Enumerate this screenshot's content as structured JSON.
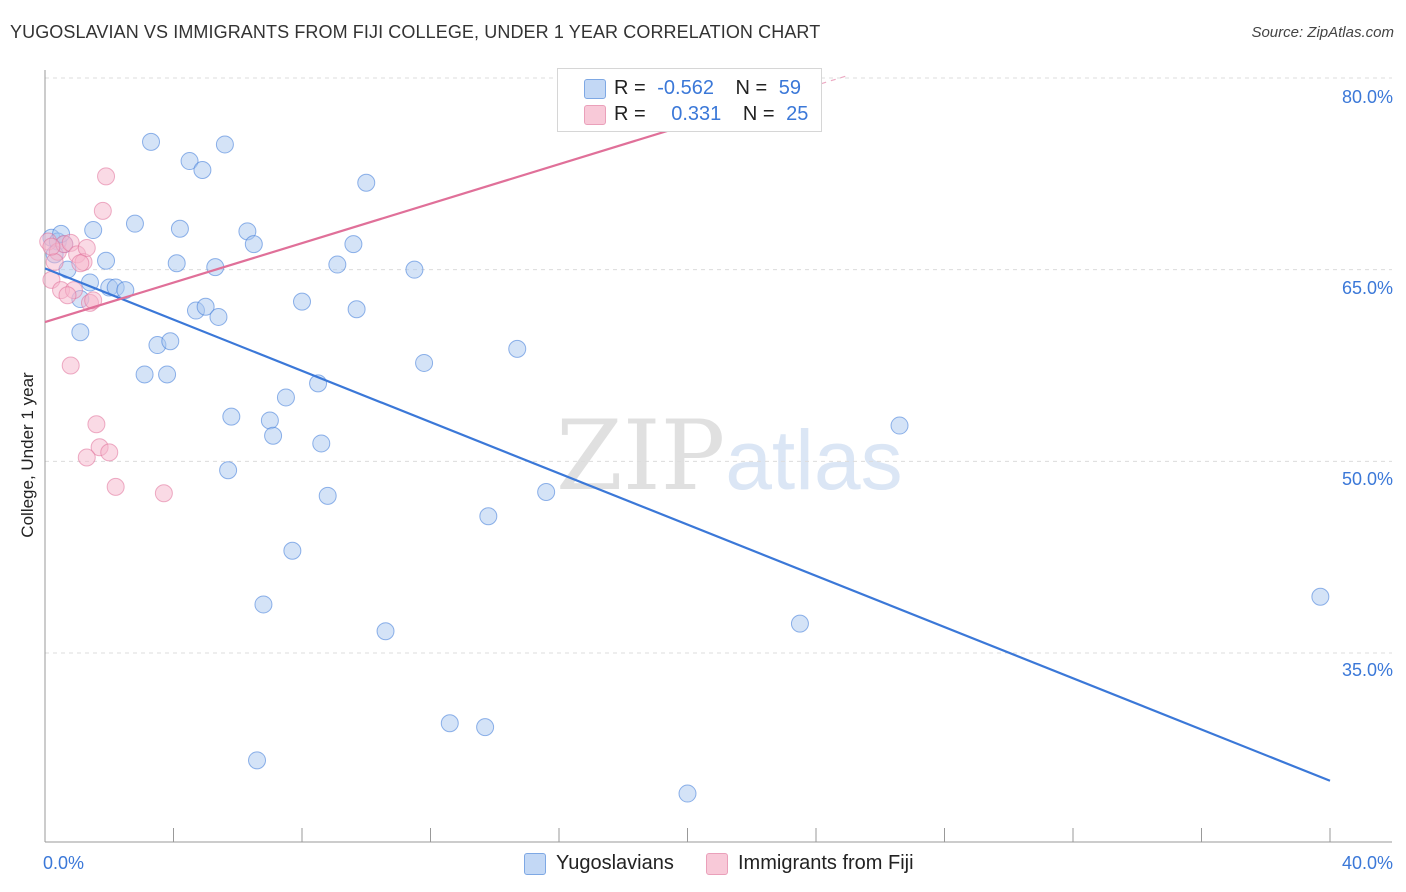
{
  "chart_data": {
    "type": "scatter",
    "title": "YUGOSLAVIAN VS IMMIGRANTS FROM FIJI COLLEGE, UNDER 1 YEAR CORRELATION CHART",
    "source": "Source: ZipAtlas.com",
    "xlabel": "",
    "ylabel": "College, Under 1 year",
    "xlim": [
      0,
      40
    ],
    "ylim": [
      20.5,
      83
    ],
    "x_tick_labels": {
      "min": "0.0%",
      "max": "40.0%"
    },
    "y_ticks": [
      35,
      50,
      65,
      80
    ],
    "y_tick_labels": [
      "35.0%",
      "50.0%",
      "65.0%",
      "80.0%"
    ],
    "watermark": {
      "zip": "ZIP",
      "atlas": "atlas"
    },
    "stats": [
      {
        "r_label": "R =",
        "r_value": "-0.562",
        "n_label": "N =",
        "n_value": "59"
      },
      {
        "r_label": "R =",
        "r_value": "0.331",
        "n_label": "N =",
        "n_value": "25"
      }
    ],
    "series": [
      {
        "name": "Yugoslavians",
        "color": "#3b78d8",
        "fill": "#a9c7f0",
        "trend": {
          "x0": 0,
          "y0": 65.1,
          "x1": 40,
          "y1": 25.0
        },
        "points": [
          [
            0.2,
            67.5
          ],
          [
            0.4,
            67.2
          ],
          [
            0.6,
            67.0
          ],
          [
            0.3,
            66.2
          ],
          [
            0.7,
            65.0
          ],
          [
            1.5,
            68.1
          ],
          [
            1.9,
            65.7
          ],
          [
            1.4,
            64.0
          ],
          [
            2.0,
            63.6
          ],
          [
            2.2,
            63.6
          ],
          [
            2.5,
            63.4
          ],
          [
            1.1,
            62.7
          ],
          [
            1.1,
            60.1
          ],
          [
            3.3,
            75.0
          ],
          [
            4.5,
            73.5
          ],
          [
            4.9,
            72.8
          ],
          [
            5.6,
            74.8
          ],
          [
            2.8,
            68.6
          ],
          [
            4.2,
            68.2
          ],
          [
            3.1,
            56.8
          ],
          [
            3.5,
            59.1
          ],
          [
            3.8,
            56.8
          ],
          [
            3.9,
            59.4
          ],
          [
            4.1,
            65.5
          ],
          [
            4.7,
            61.8
          ],
          [
            5.0,
            62.1
          ],
          [
            5.3,
            65.2
          ],
          [
            5.4,
            61.3
          ],
          [
            6.3,
            68.0
          ],
          [
            6.5,
            67.0
          ],
          [
            5.8,
            53.5
          ],
          [
            5.7,
            49.3
          ],
          [
            7.0,
            53.2
          ],
          [
            7.1,
            52.0
          ],
          [
            7.5,
            55.0
          ],
          [
            8.0,
            62.5
          ],
          [
            7.7,
            43.0
          ],
          [
            6.8,
            38.8
          ],
          [
            6.6,
            26.6
          ],
          [
            8.5,
            56.1
          ],
          [
            8.6,
            51.4
          ],
          [
            8.8,
            47.3
          ],
          [
            9.1,
            65.4
          ],
          [
            9.6,
            67.0
          ],
          [
            9.7,
            61.9
          ],
          [
            10.0,
            71.8
          ],
          [
            10.6,
            36.7
          ],
          [
            11.5,
            65.0
          ],
          [
            11.8,
            57.7
          ],
          [
            12.6,
            29.5
          ],
          [
            13.7,
            29.2
          ],
          [
            13.8,
            45.7
          ],
          [
            14.7,
            58.8
          ],
          [
            15.6,
            47.6
          ],
          [
            20.0,
            24.0
          ],
          [
            23.5,
            37.3
          ],
          [
            26.6,
            52.8
          ],
          [
            39.7,
            39.4
          ],
          [
            0.5,
            67.8
          ]
        ]
      },
      {
        "name": "Immigrants from Fiji",
        "color": "#e07099",
        "fill": "#f5b5cb",
        "trend": {
          "x0": 0,
          "y0": 60.9,
          "x1": 25.0,
          "y1": 80.2,
          "solid_to_x": 20.0
        },
        "points": [
          [
            0.1,
            67.2
          ],
          [
            0.4,
            66.4
          ],
          [
            0.6,
            67.0
          ],
          [
            0.8,
            67.1
          ],
          [
            1.0,
            66.2
          ],
          [
            1.2,
            65.6
          ],
          [
            1.3,
            66.7
          ],
          [
            0.3,
            65.6
          ],
          [
            0.2,
            64.2
          ],
          [
            0.5,
            63.4
          ],
          [
            0.9,
            63.4
          ],
          [
            0.7,
            63.0
          ],
          [
            1.4,
            62.4
          ],
          [
            1.5,
            62.6
          ],
          [
            1.1,
            65.5
          ],
          [
            1.8,
            69.6
          ],
          [
            1.9,
            72.3
          ],
          [
            0.8,
            57.5
          ],
          [
            1.6,
            52.9
          ],
          [
            1.7,
            51.1
          ],
          [
            2.0,
            50.7
          ],
          [
            1.3,
            50.3
          ],
          [
            2.2,
            48.0
          ],
          [
            3.7,
            47.5
          ],
          [
            0.2,
            66.8
          ]
        ]
      }
    ]
  }
}
